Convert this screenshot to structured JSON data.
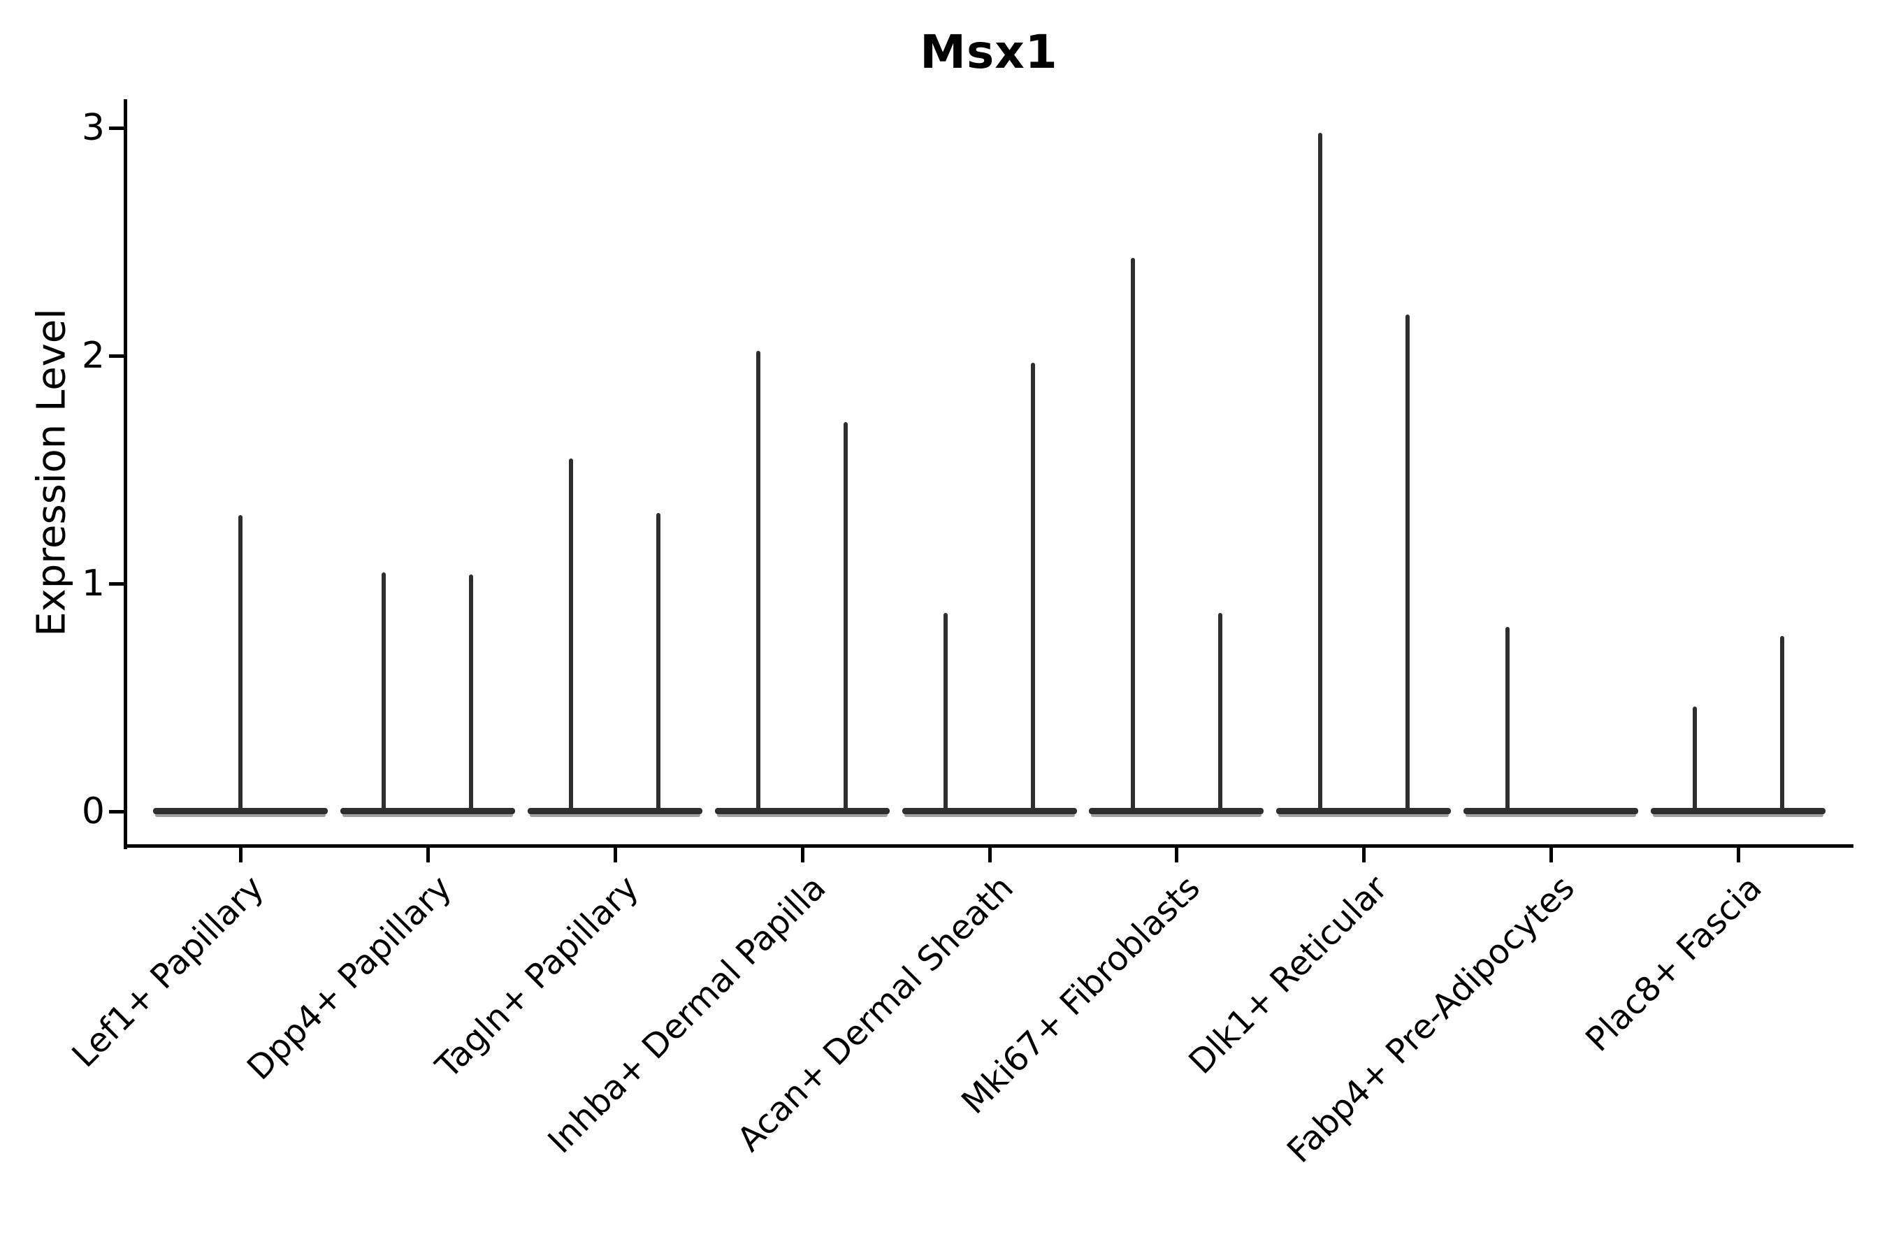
{
  "title": "Msx1",
  "y_axis": {
    "label": "Expression Level",
    "tick_labels": [
      "0",
      "1",
      "2",
      "3"
    ]
  },
  "chart_data": {
    "type": "violin",
    "title": "Msx1",
    "xlabel": "",
    "ylabel": "Expression Level",
    "yticks": [
      0,
      1,
      2,
      3
    ],
    "ylim": [
      -0.15,
      3.15
    ],
    "grid": false,
    "legend": "none",
    "line_color": "#2e2e2e",
    "background_color": "#ffffff",
    "body_description": "each violin collapses to a flat horizontal bar at expression 0 with a thin vertical tail reaching the maximum expression value",
    "categories": [
      "Lef1+ Papillary",
      "Dpp4+ Papillary",
      "Tagln+ Papillary",
      "Inhba+ Dermal Papilla",
      "Acan+ Dermal Sheath",
      "Mki67+ Fibroblasts",
      "Dlk1+ Reticular",
      "Fabp4+ Pre-Adipocytes",
      "Plac8+ Fascia"
    ],
    "violins": [
      {
        "category": "Lef1+ Papillary",
        "baseline_value": 0,
        "tails": [
          {
            "position": "center",
            "max_expression": 1.3
          }
        ]
      },
      {
        "category": "Dpp4+ Papillary",
        "baseline_value": 0,
        "tails": [
          {
            "position": "left",
            "max_expression": 1.05
          },
          {
            "position": "right",
            "max_expression": 1.04
          }
        ]
      },
      {
        "category": "Tagln+ Papillary",
        "baseline_value": 0,
        "tails": [
          {
            "position": "left",
            "max_expression": 1.55
          },
          {
            "position": "right",
            "max_expression": 1.31
          }
        ]
      },
      {
        "category": "Inhba+ Dermal Papilla",
        "baseline_value": 0,
        "tails": [
          {
            "position": "left",
            "max_expression": 2.02
          },
          {
            "position": "right",
            "max_expression": 1.71
          }
        ]
      },
      {
        "category": "Acan+ Dermal Sheath",
        "baseline_value": 0,
        "tails": [
          {
            "position": "left",
            "max_expression": 0.87
          },
          {
            "position": "right",
            "max_expression": 1.97
          }
        ]
      },
      {
        "category": "Mki67+ Fibroblasts",
        "baseline_value": 0,
        "tails": [
          {
            "position": "left",
            "max_expression": 2.43
          },
          {
            "position": "right",
            "max_expression": 0.87
          }
        ]
      },
      {
        "category": "Dlk1+ Reticular",
        "baseline_value": 0,
        "tails": [
          {
            "position": "left",
            "max_expression": 2.98
          },
          {
            "position": "right",
            "max_expression": 2.18
          }
        ]
      },
      {
        "category": "Fabp4+ Pre-Adipocytes",
        "baseline_value": 0,
        "tails": [
          {
            "position": "left",
            "max_expression": 0.81
          }
        ]
      },
      {
        "category": "Plac8+ Fascia",
        "baseline_value": 0,
        "tails": [
          {
            "position": "left",
            "max_expression": 0.46
          },
          {
            "position": "right",
            "max_expression": 0.77
          }
        ]
      }
    ]
  }
}
